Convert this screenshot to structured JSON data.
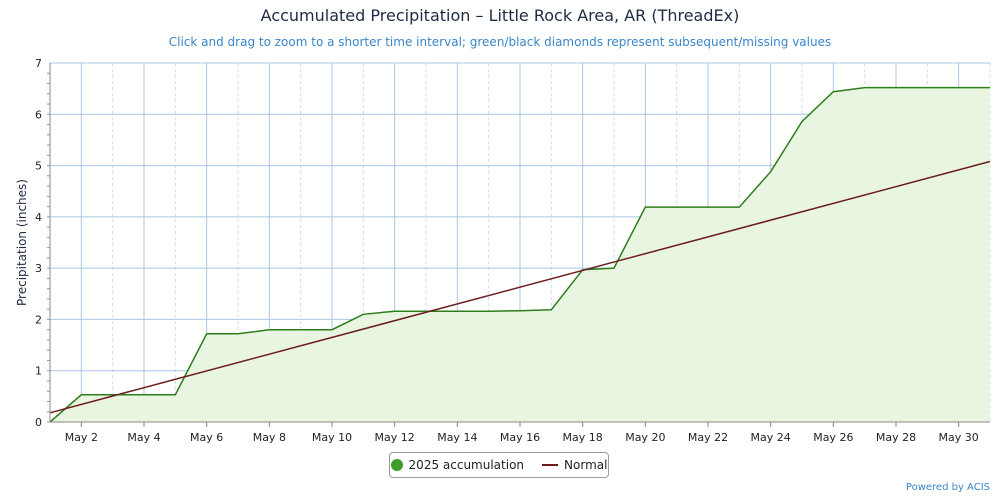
{
  "chart_data": {
    "type": "area",
    "title": "Accumulated Precipitation – Little Rock Area, AR (ThreadEx)",
    "subtitle": "Click and drag to zoom to a shorter time interval; green/black diamonds represent subsequent/missing values",
    "ylabel": "Precipitation (inches)",
    "xlabel": "",
    "ylim": [
      0,
      7
    ],
    "yticks": [
      0,
      1,
      2,
      3,
      4,
      5,
      6,
      7
    ],
    "xlim": [
      1,
      31
    ],
    "xticks": [
      {
        "day": 2,
        "label": "May 2"
      },
      {
        "day": 4,
        "label": "May 4"
      },
      {
        "day": 6,
        "label": "May 6"
      },
      {
        "day": 8,
        "label": "May 8"
      },
      {
        "day": 10,
        "label": "May 10"
      },
      {
        "day": 12,
        "label": "May 12"
      },
      {
        "day": 14,
        "label": "May 14"
      },
      {
        "day": 16,
        "label": "May 16"
      },
      {
        "day": 18,
        "label": "May 18"
      },
      {
        "day": 20,
        "label": "May 20"
      },
      {
        "day": 22,
        "label": "May 22"
      },
      {
        "day": 24,
        "label": "May 24"
      },
      {
        "day": 26,
        "label": "May 26"
      },
      {
        "day": 28,
        "label": "May 28"
      },
      {
        "day": 30,
        "label": "May 30"
      }
    ],
    "series": [
      {
        "name": "2025 accumulation",
        "color": "#2e7d1c",
        "fill": "#e8f5e0",
        "x": [
          1,
          2,
          3,
          4,
          5,
          6,
          7,
          8,
          9,
          10,
          11,
          12,
          13,
          14,
          15,
          16,
          17,
          18,
          19,
          20,
          21,
          22,
          23,
          24,
          25,
          26,
          27,
          28,
          29,
          30,
          31
        ],
        "values": [
          0,
          0.53,
          0.53,
          0.53,
          0.53,
          1.72,
          1.72,
          1.8,
          1.8,
          1.8,
          2.1,
          2.16,
          2.16,
          2.16,
          2.16,
          2.17,
          2.19,
          2.97,
          3.0,
          4.19,
          4.19,
          4.19,
          4.19,
          4.88,
          5.86,
          6.44,
          6.52,
          6.52,
          6.52,
          6.52,
          6.52
        ]
      },
      {
        "name": "Normal",
        "color": "#6b1c1c",
        "x": [
          1,
          31
        ],
        "values": [
          0.18,
          5.08
        ]
      }
    ],
    "legend_position": "bottom-center",
    "grid": true
  },
  "legend": {
    "accumulation_label": "2025 accumulation",
    "normal_label": "Normal"
  },
  "credit": "Powered by ACIS"
}
